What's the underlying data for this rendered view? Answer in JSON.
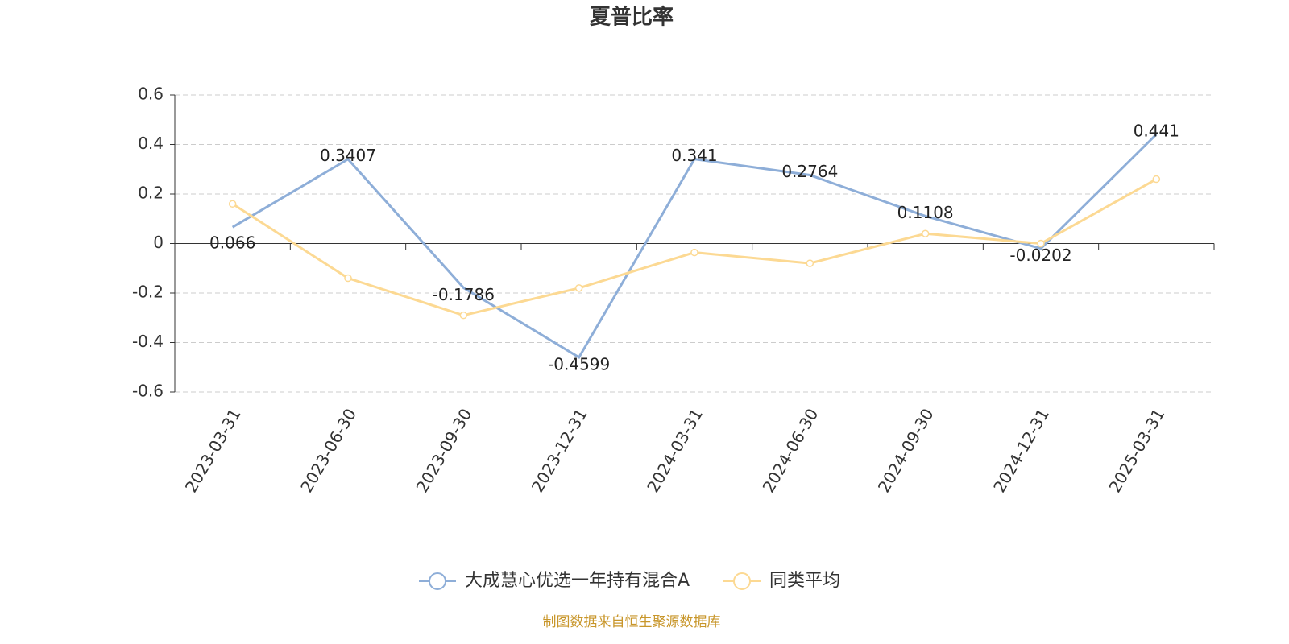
{
  "chart_data": {
    "type": "line",
    "title": "夏普比率",
    "categories": [
      "2023-03-31",
      "2023-06-30",
      "2023-09-30",
      "2023-12-31",
      "2024-03-31",
      "2024-06-30",
      "2024-09-30",
      "2024-12-31",
      "2025-03-31"
    ],
    "series": [
      {
        "name": "大成慧心优选一年持有混合A",
        "color": "#8eaed8",
        "labels": true,
        "markers": false,
        "values": [
          0.066,
          0.3407,
          -0.1786,
          -0.4599,
          0.341,
          0.2764,
          0.1108,
          -0.0202,
          0.441
        ]
      },
      {
        "name": "同类平均",
        "color": "#fcd993",
        "labels": false,
        "markers": true,
        "values": [
          0.16,
          -0.14,
          -0.29,
          -0.18,
          -0.036,
          -0.08,
          0.04,
          0.0,
          0.26
        ]
      }
    ],
    "ylim": [
      -0.6,
      0.6
    ],
    "yticks": [
      0.6,
      0.4,
      0.2,
      0,
      -0.2,
      -0.4,
      -0.6
    ],
    "grid": true,
    "legend": "bottom",
    "source": "制图数据来自恒生聚源数据库"
  }
}
